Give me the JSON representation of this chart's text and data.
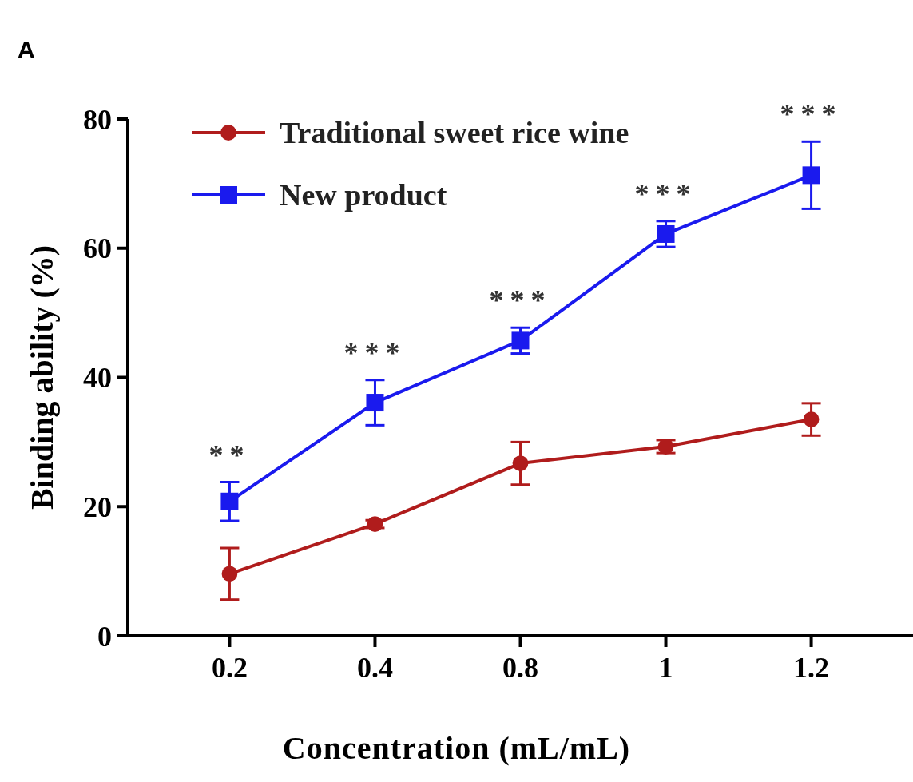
{
  "chart_data": {
    "type": "line",
    "xlabel": "Concentration (mL/mL)",
    "ylabel": "Binding ability (%)",
    "categories": [
      "0.2",
      "0.4",
      "0.8",
      "1",
      "1.2"
    ],
    "series": [
      {
        "name": "Traditional sweet rice wine",
        "color": "#b01c1c",
        "marker": "circle",
        "values": [
          9.6,
          17.3,
          26.7,
          29.3,
          33.5
        ],
        "errors": [
          4,
          0.6,
          3.3,
          1,
          2.5
        ]
      },
      {
        "name": "New product",
        "color": "#1a1aee",
        "marker": "square",
        "values": [
          20.8,
          36.1,
          45.7,
          62.2,
          71.3
        ],
        "errors": [
          3,
          3.5,
          2,
          2,
          5.2
        ]
      }
    ],
    "ylim": [
      0,
      80
    ],
    "yticks": [
      0,
      20,
      40,
      60,
      80
    ],
    "grid": false,
    "legend": "top left",
    "line_style": "solid",
    "annotations": [
      "A",
      {
        "text": "**",
        "x": "0.2",
        "y": 20.8
      },
      {
        "text": "***",
        "x": "0.4",
        "y": 36.1
      },
      {
        "text": "***",
        "x": "0.8",
        "y": 45.7
      },
      {
        "text": "***",
        "x": "1",
        "y": 62.2
      },
      {
        "text": "***",
        "x": "1.2",
        "y": 71.3
      }
    ]
  }
}
